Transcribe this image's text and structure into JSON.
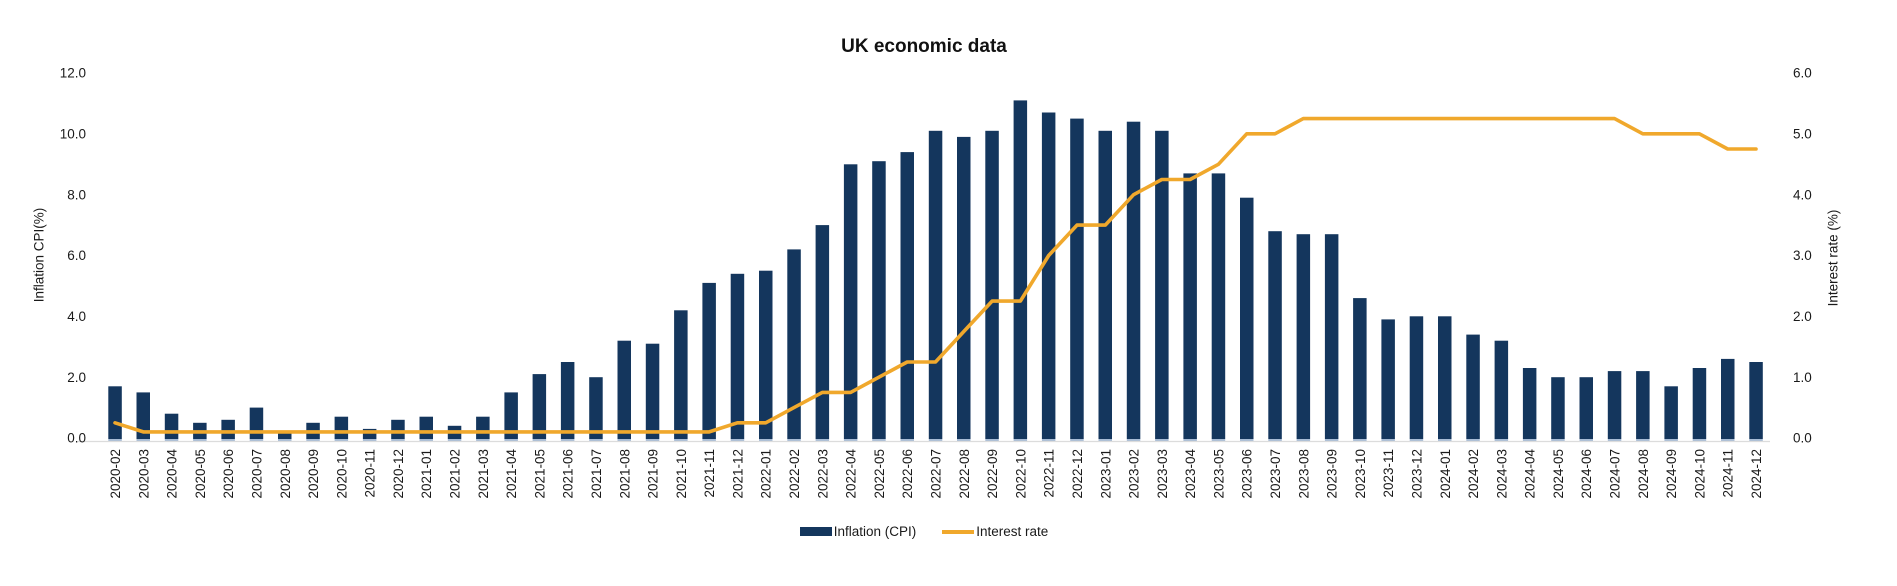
{
  "chart": {
    "colors": {
      "bar": "#14365D",
      "bar_base_stub": "#A8BCD6",
      "line": "#F0A82C",
      "axis_text": "#1a1a1a",
      "baseline": "#DCDCDC"
    }
  },
  "chart_data": {
    "type": "bar+line",
    "title": "UK economic data",
    "grid": false,
    "legend_position": "bottom",
    "categories": [
      "2020-02",
      "2020-03",
      "2020-04",
      "2020-05",
      "2020-06",
      "2020-07",
      "2020-08",
      "2020-09",
      "2020-10",
      "2020-11",
      "2020-12",
      "2021-01",
      "2021-02",
      "2021-03",
      "2021-04",
      "2021-05",
      "2021-06",
      "2021-07",
      "2021-08",
      "2021-09",
      "2021-10",
      "2021-11",
      "2021-12",
      "2022-01",
      "2022-02",
      "2022-03",
      "2022-04",
      "2022-05",
      "2022-06",
      "2022-07",
      "2022-08",
      "2022-09",
      "2022-10",
      "2022-11",
      "2022-12",
      "2023-01",
      "2023-02",
      "2023-03",
      "2023-04",
      "2023-05",
      "2023-06",
      "2023-07",
      "2023-08",
      "2023-09",
      "2023-10",
      "2023-11",
      "2023-12",
      "2024-01",
      "2024-02",
      "2024-03",
      "2024-04",
      "2024-05",
      "2024-06",
      "2024-07",
      "2024-08",
      "2024-09",
      "2024-10",
      "2024-11",
      "2024-12"
    ],
    "series": [
      {
        "name": "Inflation (CPI)",
        "type": "bar",
        "axis": "left",
        "values": [
          1.7,
          1.5,
          0.8,
          0.5,
          0.6,
          1.0,
          0.2,
          0.5,
          0.7,
          0.3,
          0.6,
          0.7,
          0.4,
          0.7,
          1.5,
          2.1,
          2.5,
          2.0,
          3.2,
          3.1,
          4.2,
          5.1,
          5.4,
          5.5,
          6.2,
          7.0,
          9.0,
          9.1,
          9.4,
          10.1,
          9.9,
          10.1,
          11.1,
          10.7,
          10.5,
          10.1,
          10.4,
          10.1,
          8.7,
          8.7,
          7.9,
          6.8,
          6.7,
          6.7,
          4.6,
          3.9,
          4.0,
          4.0,
          3.4,
          3.2,
          2.3,
          2.0,
          2.0,
          2.2,
          2.2,
          1.7,
          2.3,
          2.6,
          2.5
        ]
      },
      {
        "name": "Interest rate",
        "type": "line",
        "axis": "right",
        "values": [
          0.25,
          0.1,
          0.1,
          0.1,
          0.1,
          0.1,
          0.1,
          0.1,
          0.1,
          0.1,
          0.1,
          0.1,
          0.1,
          0.1,
          0.1,
          0.1,
          0.1,
          0.1,
          0.1,
          0.1,
          0.1,
          0.1,
          0.25,
          0.25,
          0.5,
          0.75,
          0.75,
          1.0,
          1.25,
          1.25,
          1.75,
          2.25,
          2.25,
          3.0,
          3.5,
          3.5,
          4.0,
          4.25,
          4.25,
          4.5,
          5.0,
          5.0,
          5.25,
          5.25,
          5.25,
          5.25,
          5.25,
          5.25,
          5.25,
          5.25,
          5.25,
          5.25,
          5.25,
          5.25,
          5.0,
          5.0,
          5.0,
          4.75,
          4.75
        ]
      }
    ],
    "left_axis": {
      "label": "Inflation CPI(%)",
      "min": 0,
      "max": 12,
      "tick_step": 2,
      "ticks": [
        "0.0",
        "2.0",
        "4.0",
        "6.0",
        "8.0",
        "10.0",
        "12.0"
      ]
    },
    "right_axis": {
      "label": "Interest rate (%)",
      "min": 0,
      "max": 6,
      "tick_step": 1,
      "ticks": [
        "0.0",
        "1.0",
        "2.0",
        "3.0",
        "4.0",
        "5.0",
        "6.0"
      ]
    }
  }
}
